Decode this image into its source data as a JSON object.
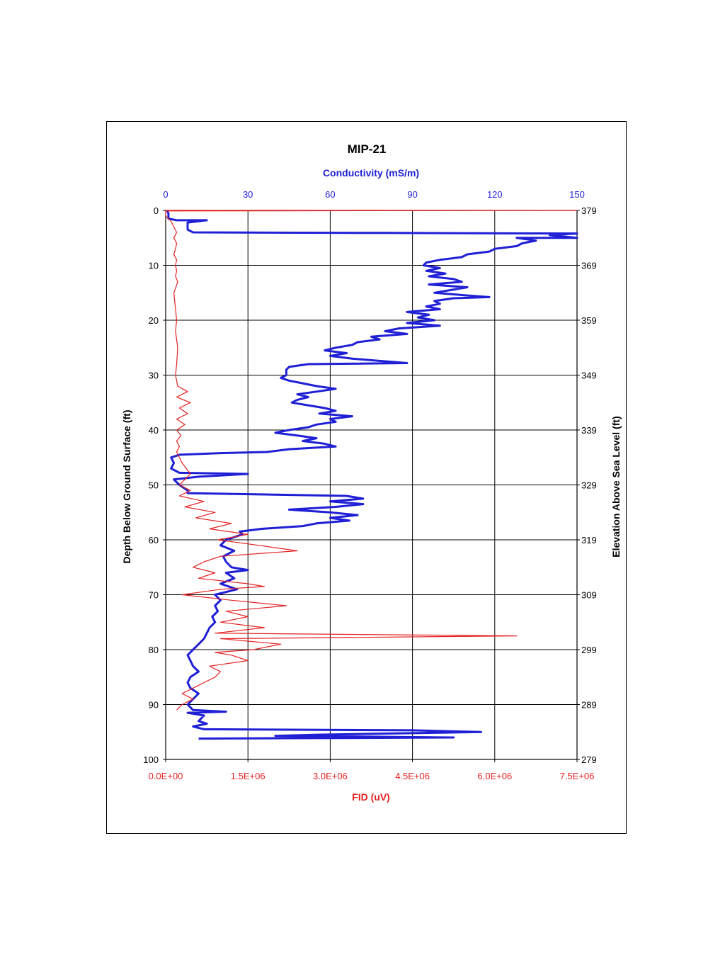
{
  "chart_data": {
    "type": "line",
    "title": "MIP-21",
    "top_axis": {
      "label": "Conductivity (mS/m)",
      "range": [
        0,
        150
      ],
      "ticks": [
        "0",
        "30",
        "60",
        "90",
        "120",
        "150"
      ],
      "color": "#1f1fd6"
    },
    "bottom_axis": {
      "label": "FID (uV)",
      "range": [
        0,
        7500000
      ],
      "ticks": [
        "0.0E+00",
        "1.5E+06",
        "3.0E+06",
        "4.5E+06",
        "6.0E+06",
        "7.5E+06"
      ],
      "color": "#e32222"
    },
    "left_axis": {
      "label": "Depth Below Ground Surface (ft)",
      "range": [
        0,
        100
      ],
      "ticks": [
        "0",
        "10",
        "20",
        "30",
        "40",
        "50",
        "60",
        "70",
        "80",
        "90",
        "100"
      ]
    },
    "right_axis": {
      "label": "Elevation Above Sea Level (ft)",
      "range": [
        379,
        279
      ],
      "ticks": [
        "379",
        "369",
        "359",
        "349",
        "339",
        "329",
        "319",
        "309",
        "299",
        "289",
        "279"
      ]
    },
    "grid": true,
    "series": [
      {
        "axis": "top",
        "color": "#1f1fd6",
        "points": [
          [
            0.5,
            0
          ],
          [
            1,
            0.5
          ],
          [
            1,
            1.5
          ],
          [
            4,
            1.8
          ],
          [
            8,
            1.8
          ],
          [
            15,
            1.8
          ],
          [
            8,
            2.2
          ],
          [
            8,
            3.5
          ],
          [
            10,
            4
          ],
          [
            80,
            4.1
          ],
          [
            150,
            4.2
          ],
          [
            140,
            4.5
          ],
          [
            150,
            5
          ],
          [
            128,
            5
          ],
          [
            135,
            5.5
          ],
          [
            130,
            6
          ],
          [
            128,
            6.5
          ],
          [
            120,
            7
          ],
          [
            118,
            7.5
          ],
          [
            110,
            8
          ],
          [
            108,
            8.5
          ],
          [
            100,
            9
          ],
          [
            95,
            9.5
          ],
          [
            94,
            10
          ],
          [
            100,
            10.5
          ],
          [
            95,
            11
          ],
          [
            102,
            11.5
          ],
          [
            96,
            12
          ],
          [
            105,
            12.5
          ],
          [
            108,
            13
          ],
          [
            96,
            13.5
          ],
          [
            110,
            14
          ],
          [
            104,
            14.5
          ],
          [
            98,
            15
          ],
          [
            110,
            15.5
          ],
          [
            118,
            15.8
          ],
          [
            105,
            16
          ],
          [
            98,
            16.5
          ],
          [
            100,
            17
          ],
          [
            95,
            17.5
          ],
          [
            100,
            18
          ],
          [
            88,
            18.5
          ],
          [
            96,
            19
          ],
          [
            92,
            19.5
          ],
          [
            98,
            20
          ],
          [
            88,
            20.5
          ],
          [
            100,
            21
          ],
          [
            85,
            21.5
          ],
          [
            80,
            22
          ],
          [
            88,
            22.5
          ],
          [
            75,
            23
          ],
          [
            78,
            23.5
          ],
          [
            70,
            24
          ],
          [
            68,
            24.5
          ],
          [
            62,
            25
          ],
          [
            58,
            25.5
          ],
          [
            66,
            26
          ],
          [
            60,
            26.5
          ],
          [
            68,
            27
          ],
          [
            88,
            27.8
          ],
          [
            52,
            28
          ],
          [
            45,
            28.5
          ],
          [
            44,
            29
          ],
          [
            44,
            30
          ],
          [
            42,
            30.5
          ],
          [
            45,
            31
          ],
          [
            50,
            31.5
          ],
          [
            55,
            32
          ],
          [
            62,
            32.5
          ],
          [
            55,
            33
          ],
          [
            48,
            33.5
          ],
          [
            52,
            34
          ],
          [
            48,
            34.5
          ],
          [
            46,
            35
          ],
          [
            52,
            35.5
          ],
          [
            58,
            36
          ],
          [
            62,
            36.5
          ],
          [
            56,
            37
          ],
          [
            68,
            37.5
          ],
          [
            60,
            38
          ],
          [
            62,
            38.5
          ],
          [
            55,
            39
          ],
          [
            52,
            39.5
          ],
          [
            45,
            40
          ],
          [
            40,
            40.5
          ],
          [
            48,
            41
          ],
          [
            55,
            41.5
          ],
          [
            50,
            42
          ],
          [
            58,
            42.5
          ],
          [
            62,
            43
          ],
          [
            45,
            43.5
          ],
          [
            37,
            44
          ],
          [
            20,
            44.2
          ],
          [
            5,
            44.5
          ],
          [
            2,
            45
          ],
          [
            3,
            46
          ],
          [
            2,
            47
          ],
          [
            5,
            47.8
          ],
          [
            30,
            48
          ],
          [
            12,
            48.5
          ],
          [
            3,
            49
          ],
          [
            5,
            50
          ],
          [
            8,
            51
          ],
          [
            8,
            51.5
          ],
          [
            66,
            52
          ],
          [
            72,
            52.5
          ],
          [
            60,
            53
          ],
          [
            72,
            53.5
          ],
          [
            62,
            54
          ],
          [
            45,
            54.5
          ],
          [
            60,
            55
          ],
          [
            70,
            55.5
          ],
          [
            60,
            56
          ],
          [
            67,
            56.5
          ],
          [
            55,
            57
          ],
          [
            50,
            57.5
          ],
          [
            35,
            58
          ],
          [
            27,
            58.5
          ],
          [
            28,
            59
          ],
          [
            22,
            60
          ],
          [
            20,
            61
          ],
          [
            25,
            62
          ],
          [
            21,
            63
          ],
          [
            22,
            64
          ],
          [
            24,
            65
          ],
          [
            30,
            65.5
          ],
          [
            22,
            66
          ],
          [
            25,
            67
          ],
          [
            20,
            68
          ],
          [
            26,
            69
          ],
          [
            18,
            70
          ],
          [
            20,
            71
          ],
          [
            18,
            72
          ],
          [
            19,
            73
          ],
          [
            17,
            74
          ],
          [
            18,
            75
          ],
          [
            16,
            76
          ],
          [
            15,
            77
          ],
          [
            14,
            78
          ],
          [
            12,
            79
          ],
          [
            10,
            80
          ],
          [
            8,
            81
          ],
          [
            9,
            82
          ],
          [
            10,
            83
          ],
          [
            12,
            84
          ],
          [
            9,
            85
          ],
          [
            8,
            86
          ],
          [
            9,
            87
          ],
          [
            12,
            88
          ],
          [
            10,
            89
          ],
          [
            8,
            90
          ],
          [
            10,
            91
          ],
          [
            22,
            91.3
          ],
          [
            8,
            91.5
          ],
          [
            14,
            92
          ],
          [
            12,
            93
          ],
          [
            15,
            93.5
          ],
          [
            10,
            94
          ],
          [
            14,
            94.5
          ],
          [
            90,
            94.7
          ],
          [
            115,
            95
          ],
          [
            55,
            95.5
          ],
          [
            40,
            95.7
          ],
          [
            105,
            96
          ],
          [
            12,
            96.2
          ]
        ]
      },
      {
        "axis": "bottom",
        "color": "#e32222",
        "points": [
          [
            0,
            0
          ],
          [
            7500000,
            0
          ],
          [
            0,
            0.1
          ],
          [
            0,
            1
          ],
          [
            100000,
            2
          ],
          [
            200000,
            4
          ],
          [
            150000,
            5
          ],
          [
            200000,
            6
          ],
          [
            180000,
            7
          ],
          [
            150000,
            8
          ],
          [
            200000,
            9
          ],
          [
            180000,
            10
          ],
          [
            200000,
            11
          ],
          [
            180000,
            12
          ],
          [
            220000,
            13
          ],
          [
            150000,
            15
          ],
          [
            200000,
            20
          ],
          [
            180000,
            22
          ],
          [
            220000,
            25
          ],
          [
            200000,
            28
          ],
          [
            180000,
            30
          ],
          [
            220000,
            32
          ],
          [
            400000,
            33
          ],
          [
            200000,
            34
          ],
          [
            450000,
            35
          ],
          [
            250000,
            36
          ],
          [
            400000,
            37
          ],
          [
            200000,
            38
          ],
          [
            350000,
            39
          ],
          [
            200000,
            40
          ],
          [
            280000,
            41
          ],
          [
            200000,
            42
          ],
          [
            250000,
            43
          ],
          [
            200000,
            44
          ],
          [
            300000,
            46
          ],
          [
            450000,
            48
          ],
          [
            350000,
            49
          ],
          [
            250000,
            50
          ],
          [
            450000,
            51
          ],
          [
            250000,
            52
          ],
          [
            700000,
            53
          ],
          [
            350000,
            54
          ],
          [
            900000,
            55
          ],
          [
            550000,
            56
          ],
          [
            1200000,
            57
          ],
          [
            800000,
            58
          ],
          [
            1500000,
            59
          ],
          [
            950000,
            60
          ],
          [
            1700000,
            61
          ],
          [
            2400000,
            62
          ],
          [
            1000000,
            63
          ],
          [
            700000,
            64
          ],
          [
            500000,
            65
          ],
          [
            900000,
            66
          ],
          [
            600000,
            67
          ],
          [
            1500000,
            68
          ],
          [
            1800000,
            68.5
          ],
          [
            1000000,
            69
          ],
          [
            300000,
            70
          ],
          [
            1200000,
            71
          ],
          [
            2200000,
            72
          ],
          [
            1100000,
            73
          ],
          [
            1500000,
            74
          ],
          [
            1000000,
            75
          ],
          [
            1800000,
            76
          ],
          [
            900000,
            77
          ],
          [
            6400000,
            77.5
          ],
          [
            1000000,
            78
          ],
          [
            2100000,
            79
          ],
          [
            1600000,
            80
          ],
          [
            900000,
            80.5
          ],
          [
            1200000,
            81
          ],
          [
            1500000,
            82
          ],
          [
            800000,
            83
          ],
          [
            1000000,
            84
          ],
          [
            900000,
            85
          ],
          [
            700000,
            86
          ],
          [
            500000,
            87
          ],
          [
            300000,
            88
          ],
          [
            500000,
            89
          ],
          [
            300000,
            90
          ],
          [
            200000,
            91
          ]
        ]
      }
    ]
  }
}
